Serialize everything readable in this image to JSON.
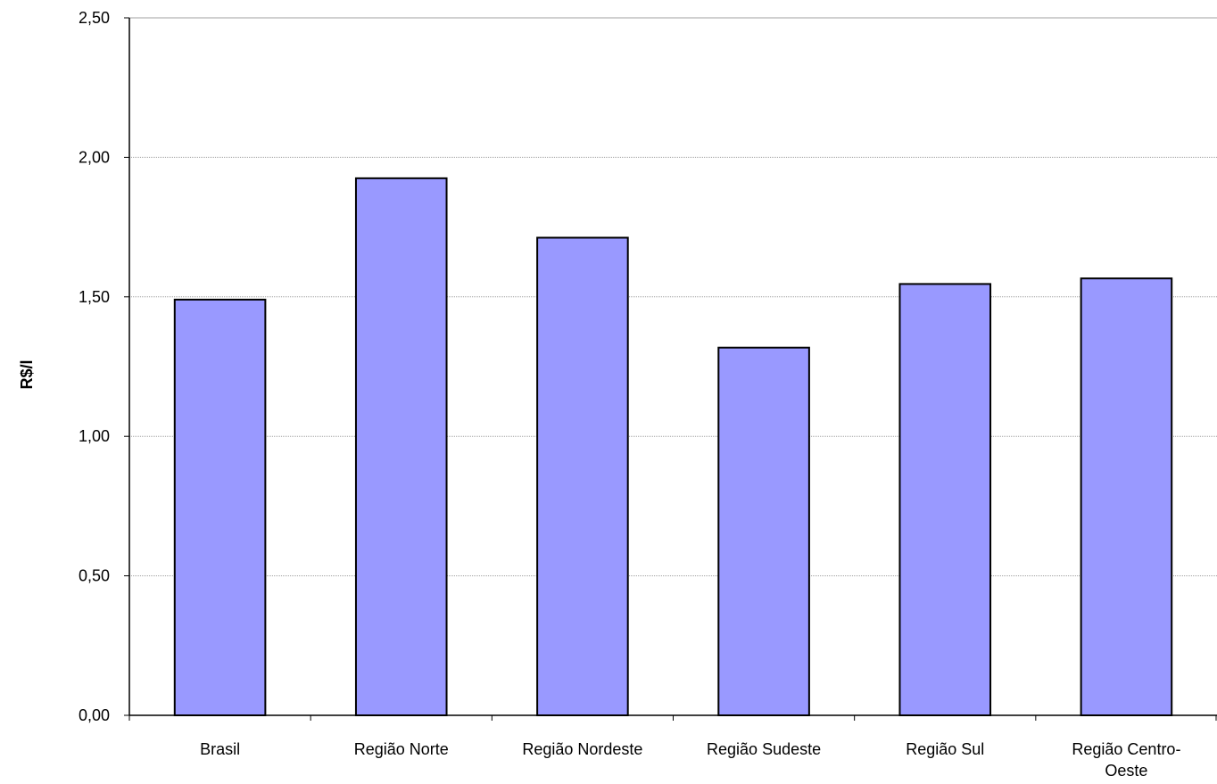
{
  "chart_data": {
    "type": "bar",
    "title": "",
    "xlabel": "",
    "ylabel": "R$/l",
    "categories": [
      [
        "Brasil"
      ],
      [
        "Região Norte"
      ],
      [
        "Região Nordeste"
      ],
      [
        "Região Sudeste"
      ],
      [
        "Região Sul"
      ],
      [
        "Região Centro-",
        "Oeste"
      ]
    ],
    "values": [
      1.49,
      1.925,
      1.712,
      1.318,
      1.546,
      1.566
    ],
    "ylim": [
      0,
      2.5
    ],
    "yticks": [
      "0,00",
      "0,50",
      "1,00",
      "1,50",
      "2,00",
      "2,50"
    ],
    "grid": true,
    "legend": "none",
    "colors": {
      "bar_fill": "#9999ff",
      "bar_stroke": "#000000",
      "grid": "#a0a0a0",
      "axis": "#000000"
    }
  }
}
